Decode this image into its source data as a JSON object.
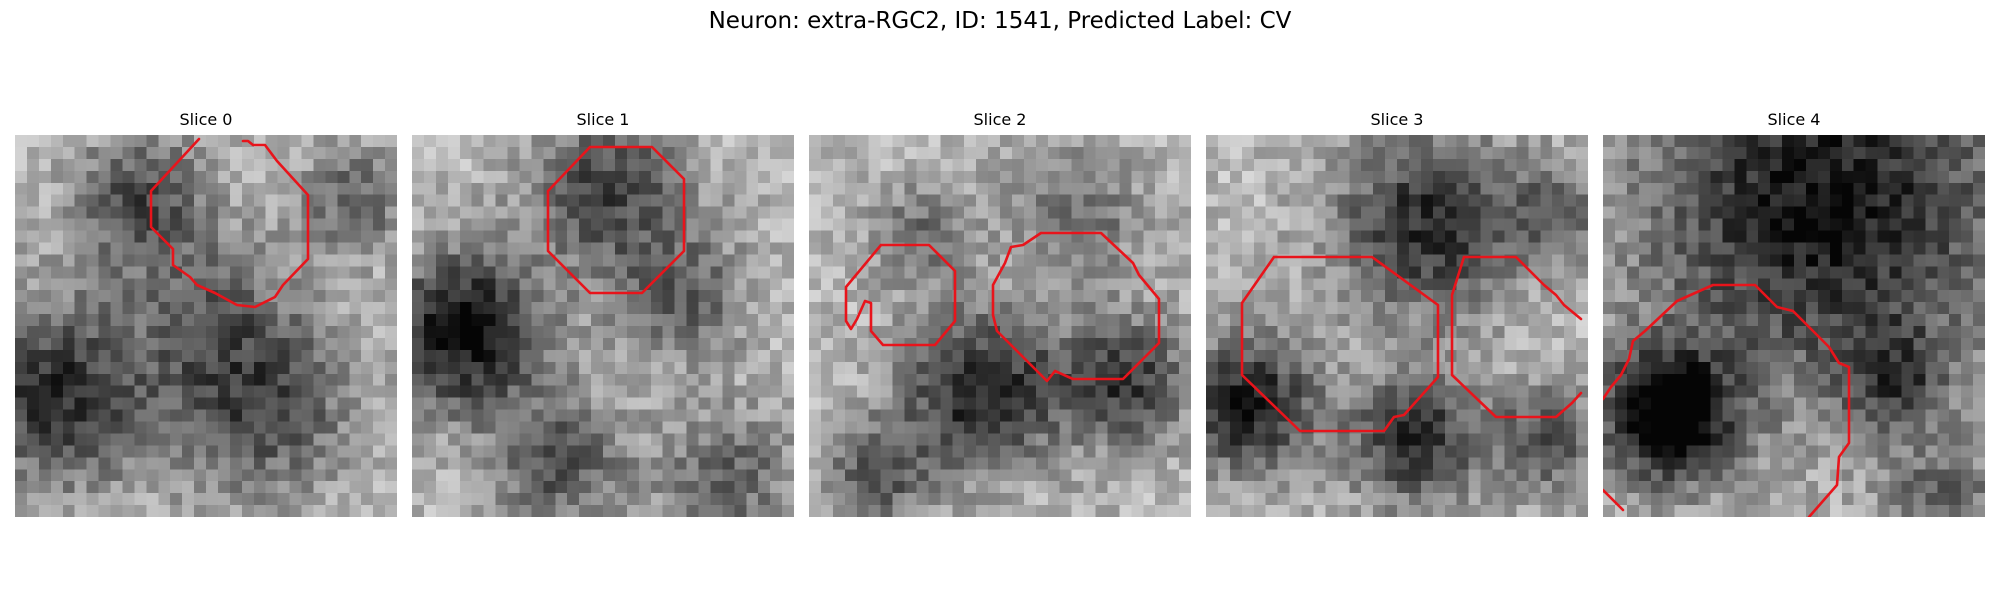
{
  "figure": {
    "title": "Neuron: extra-RGC2, ID: 1541, Predicted Label: CV"
  },
  "colors": {
    "contour": "#e8141b",
    "colormap": "grayscale"
  },
  "slices": [
    {
      "label": "Slice 0"
    },
    {
      "label": "Slice 1"
    },
    {
      "label": "Slice 2"
    },
    {
      "label": "Slice 3"
    },
    {
      "label": "Slice 4"
    }
  ]
}
